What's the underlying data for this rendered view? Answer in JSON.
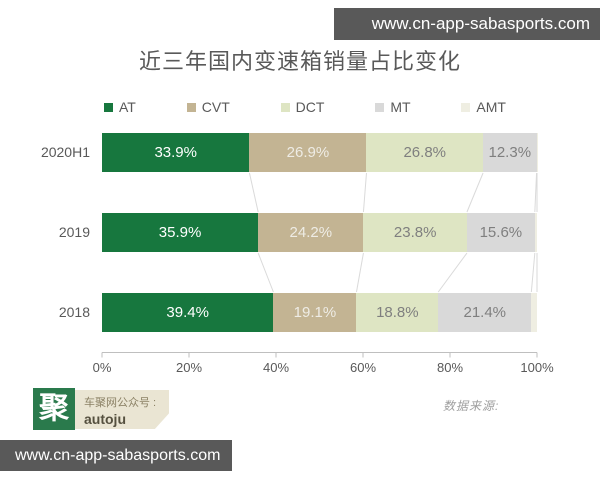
{
  "watermark_top": "www.cn-app-sabasports.com",
  "watermark_bottom": "www.cn-app-sabasports.com",
  "chart_data": {
    "type": "bar",
    "stacked": true,
    "orientation": "horizontal",
    "title": "近三年国内变速箱销量占比变化",
    "categories": [
      "2020H1",
      "2019",
      "2018"
    ],
    "series": [
      {
        "name": "AT",
        "values": [
          33.9,
          35.9,
          39.4
        ],
        "color": "#17773e",
        "label_color": "#ffffff"
      },
      {
        "name": "CVT",
        "values": [
          26.9,
          24.2,
          19.1
        ],
        "color": "#c3b493",
        "label_color": "#eeece5"
      },
      {
        "name": "DCT",
        "values": [
          26.8,
          23.8,
          18.8
        ],
        "color": "#dee5c3",
        "label_color": "#7f7f7f"
      },
      {
        "name": "MT",
        "values": [
          12.3,
          15.6,
          21.4
        ],
        "color": "#d9d9d9",
        "label_color": "#7f7f7f"
      },
      {
        "name": "AMT",
        "values": [
          0.1,
          0.5,
          1.3
        ],
        "color": "#efeee2",
        "label_color": "#7f7f7f"
      }
    ],
    "x_ticks": [
      "0%",
      "20%",
      "40%",
      "60%",
      "80%",
      "100%"
    ],
    "xlim": [
      0,
      100
    ],
    "value_suffix": "%",
    "legend_position": "top",
    "grid": false
  },
  "footer": {
    "logo_glyph": "聚",
    "account_label": "车聚网公众号 :",
    "account_name": "autoju",
    "source_label": "数据来源:"
  },
  "colors": {
    "watermark_bg": "#595959",
    "axis_line": "#bfbfbf",
    "connector_line": "#dadada",
    "text_gray": "#595959",
    "logo_green": "#2a7a4c",
    "tag_beige": "#eae5d3"
  }
}
